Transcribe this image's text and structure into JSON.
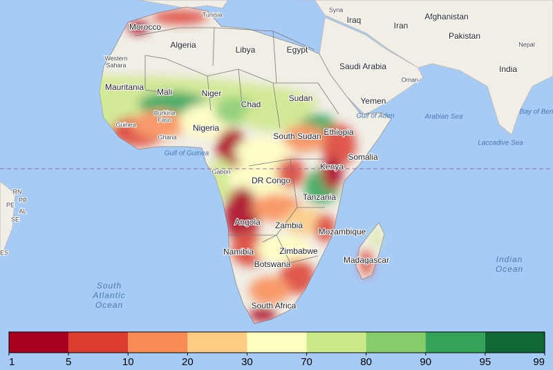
{
  "map": {
    "labels": [
      "Tunisia",
      "Morocco",
      "Algeria",
      "Libya",
      "Egypt",
      "Syria",
      "Iraq",
      "Iran",
      "Afghanistan",
      "Pakistan",
      "Nepal",
      "India",
      [
        "Western",
        "Sahara"
      ],
      "Saudi Arabia",
      "Oman",
      "Yemen",
      "Mauritania",
      "Mali",
      "Niger",
      "Chad",
      "Sudan",
      [
        "Burkina",
        "Faso"
      ],
      "Guinea",
      "Ghana",
      "Nigeria",
      "Gulf of Aden",
      "Arabian Sea",
      "Bay of Ben",
      "South Sudan",
      "Ethiopia",
      "Somalia",
      "Gulf of Guinea",
      "Gabon",
      "DR Congo",
      "Kenya",
      "Tanzania",
      "Laccadive Sea",
      "Angola",
      "Zambia",
      "Mozambique",
      "Namibia",
      "Zimbabwe",
      "Botswana",
      "Madagascar",
      "South Africa",
      [
        "South",
        "Atlantic",
        "Ocean"
      ],
      [
        "Indian",
        "Ocean"
      ],
      "RN",
      "PB",
      "PE",
      "AL",
      "SE",
      "ES"
    ]
  },
  "legend": {
    "ticks": [
      1,
      5,
      10,
      20,
      30,
      70,
      80,
      90,
      95,
      99
    ],
    "colors": [
      "#a8001f",
      "#dc3c30",
      "#f98b55",
      "#fdcb82",
      "#ffffc0",
      "#cde889",
      "#86cc6a",
      "#33a357",
      "#0f6932"
    ]
  }
}
